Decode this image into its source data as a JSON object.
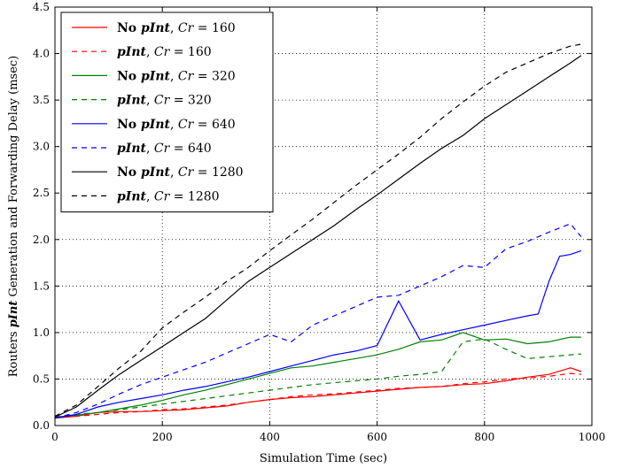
{
  "chart_data": {
    "type": "line",
    "xlabel": "Simulation Time (sec)",
    "ylabel_parts": [
      "Routers ",
      "pInt",
      " Generation and Forwarding Delay (msec)"
    ],
    "xlim": [
      0,
      1000
    ],
    "ylim": [
      0,
      4.5
    ],
    "x_ticks": [
      "0",
      "200",
      "400",
      "600",
      "800",
      "1000"
    ],
    "y_ticks": [
      "0.0",
      "0.5",
      "1.0",
      "1.5",
      "2.0",
      "2.5",
      "3.0",
      "3.5",
      "4.0",
      "4.5"
    ],
    "grid": true,
    "legend_position": "top-left",
    "series": [
      {
        "name": "No pInt, Cr = 160",
        "label_parts": [
          "No ",
          "pInt",
          ", ",
          "Cr",
          " = 160"
        ],
        "color": "#ff0000",
        "style": "solid",
        "x": [
          0,
          40,
          80,
          120,
          160,
          200,
          240,
          280,
          320,
          360,
          400,
          440,
          480,
          520,
          560,
          600,
          640,
          680,
          720,
          760,
          800,
          840,
          880,
          920,
          960,
          980
        ],
        "y": [
          0.08,
          0.1,
          0.14,
          0.15,
          0.15,
          0.16,
          0.17,
          0.19,
          0.21,
          0.25,
          0.28,
          0.3,
          0.31,
          0.33,
          0.35,
          0.37,
          0.39,
          0.41,
          0.42,
          0.44,
          0.45,
          0.48,
          0.52,
          0.55,
          0.62,
          0.58
        ]
      },
      {
        "name": "pInt, Cr = 160",
        "label_parts": [
          "",
          "pInt",
          ", ",
          "Cr",
          " = 160"
        ],
        "color": "#ff0000",
        "style": "dashed",
        "x": [
          0,
          40,
          80,
          120,
          160,
          200,
          240,
          280,
          320,
          360,
          400,
          440,
          480,
          520,
          560,
          600,
          640,
          680,
          720,
          760,
          800,
          840,
          880,
          920,
          960,
          980
        ],
        "y": [
          0.09,
          0.1,
          0.12,
          0.14,
          0.15,
          0.17,
          0.18,
          0.2,
          0.22,
          0.25,
          0.28,
          0.31,
          0.33,
          0.34,
          0.36,
          0.38,
          0.4,
          0.41,
          0.42,
          0.45,
          0.47,
          0.5,
          0.51,
          0.53,
          0.56,
          0.55
        ]
      },
      {
        "name": "No pInt, Cr = 320",
        "label_parts": [
          "No ",
          "pInt",
          ", ",
          "Cr",
          " = 320"
        ],
        "color": "#008000",
        "style": "solid",
        "x": [
          0,
          40,
          80,
          120,
          160,
          200,
          240,
          280,
          320,
          360,
          400,
          440,
          480,
          520,
          560,
          600,
          640,
          680,
          720,
          760,
          800,
          840,
          880,
          920,
          960,
          980
        ],
        "y": [
          0.09,
          0.11,
          0.14,
          0.18,
          0.22,
          0.27,
          0.33,
          0.38,
          0.44,
          0.5,
          0.56,
          0.62,
          0.64,
          0.68,
          0.72,
          0.76,
          0.82,
          0.9,
          0.92,
          1.0,
          0.92,
          0.93,
          0.88,
          0.9,
          0.95,
          0.95
        ]
      },
      {
        "name": "pInt, Cr = 320",
        "label_parts": [
          "",
          "pInt",
          ", ",
          "Cr",
          " = 320"
        ],
        "color": "#008000",
        "style": "dashed",
        "x": [
          0,
          40,
          80,
          120,
          160,
          200,
          240,
          280,
          320,
          360,
          400,
          440,
          480,
          520,
          560,
          600,
          640,
          680,
          720,
          760,
          800,
          840,
          880,
          920,
          960,
          980
        ],
        "y": [
          0.09,
          0.12,
          0.14,
          0.17,
          0.2,
          0.23,
          0.26,
          0.29,
          0.32,
          0.35,
          0.38,
          0.41,
          0.44,
          0.46,
          0.48,
          0.5,
          0.53,
          0.55,
          0.58,
          0.9,
          0.93,
          0.82,
          0.72,
          0.74,
          0.76,
          0.77
        ]
      },
      {
        "name": "No pInt, Cr = 640",
        "label_parts": [
          "No ",
          "pInt",
          ", ",
          "Cr",
          " = 640"
        ],
        "color": "#0000ff",
        "style": "solid",
        "x": [
          0,
          40,
          80,
          120,
          160,
          200,
          240,
          280,
          320,
          360,
          400,
          440,
          480,
          520,
          560,
          600,
          640,
          680,
          720,
          760,
          800,
          840,
          880,
          900,
          920,
          940,
          960,
          980
        ],
        "y": [
          0.08,
          0.12,
          0.2,
          0.25,
          0.29,
          0.33,
          0.38,
          0.42,
          0.47,
          0.52,
          0.58,
          0.64,
          0.7,
          0.76,
          0.8,
          0.86,
          1.34,
          0.92,
          0.98,
          1.03,
          1.08,
          1.13,
          1.18,
          1.2,
          1.55,
          1.82,
          1.84,
          1.88
        ]
      },
      {
        "name": "pInt, Cr = 640",
        "label_parts": [
          "",
          "pInt",
          ", ",
          "Cr",
          " = 640"
        ],
        "color": "#0000ff",
        "style": "dashed",
        "x": [
          0,
          40,
          80,
          120,
          160,
          200,
          240,
          280,
          320,
          360,
          400,
          440,
          480,
          520,
          560,
          600,
          640,
          680,
          720,
          760,
          800,
          840,
          880,
          920,
          960,
          980
        ],
        "y": [
          0.08,
          0.14,
          0.23,
          0.34,
          0.44,
          0.52,
          0.6,
          0.68,
          0.78,
          0.88,
          0.98,
          0.9,
          1.08,
          1.18,
          1.28,
          1.38,
          1.4,
          1.5,
          1.6,
          1.72,
          1.7,
          1.9,
          1.98,
          2.08,
          2.17,
          2.03
        ]
      },
      {
        "name": "No pInt, Cr = 1280",
        "label_parts": [
          "No ",
          "pInt",
          ", ",
          "Cr",
          " = 1280"
        ],
        "color": "#000000",
        "style": "solid",
        "x": [
          0,
          40,
          80,
          120,
          160,
          200,
          240,
          280,
          320,
          360,
          400,
          440,
          480,
          520,
          560,
          600,
          640,
          680,
          720,
          760,
          800,
          840,
          880,
          920,
          960,
          980
        ],
        "y": [
          0.09,
          0.2,
          0.38,
          0.55,
          0.7,
          0.85,
          1.0,
          1.15,
          1.35,
          1.55,
          1.7,
          1.85,
          2.0,
          2.15,
          2.32,
          2.48,
          2.65,
          2.82,
          2.98,
          3.12,
          3.3,
          3.45,
          3.6,
          3.75,
          3.9,
          3.98
        ]
      },
      {
        "name": "pInt, Cr = 1280",
        "label_parts": [
          "",
          "pInt",
          ", ",
          "Cr",
          " = 1280"
        ],
        "color": "#000000",
        "style": "dashed",
        "x": [
          0,
          40,
          80,
          120,
          160,
          200,
          240,
          280,
          320,
          360,
          400,
          440,
          480,
          520,
          560,
          600,
          640,
          680,
          720,
          760,
          800,
          840,
          880,
          920,
          960,
          980
        ],
        "y": [
          0.1,
          0.22,
          0.42,
          0.62,
          0.8,
          1.05,
          1.22,
          1.38,
          1.55,
          1.7,
          1.88,
          2.05,
          2.22,
          2.4,
          2.58,
          2.75,
          2.92,
          3.1,
          3.3,
          3.48,
          3.65,
          3.8,
          3.9,
          4.0,
          4.08,
          4.1
        ]
      }
    ]
  }
}
